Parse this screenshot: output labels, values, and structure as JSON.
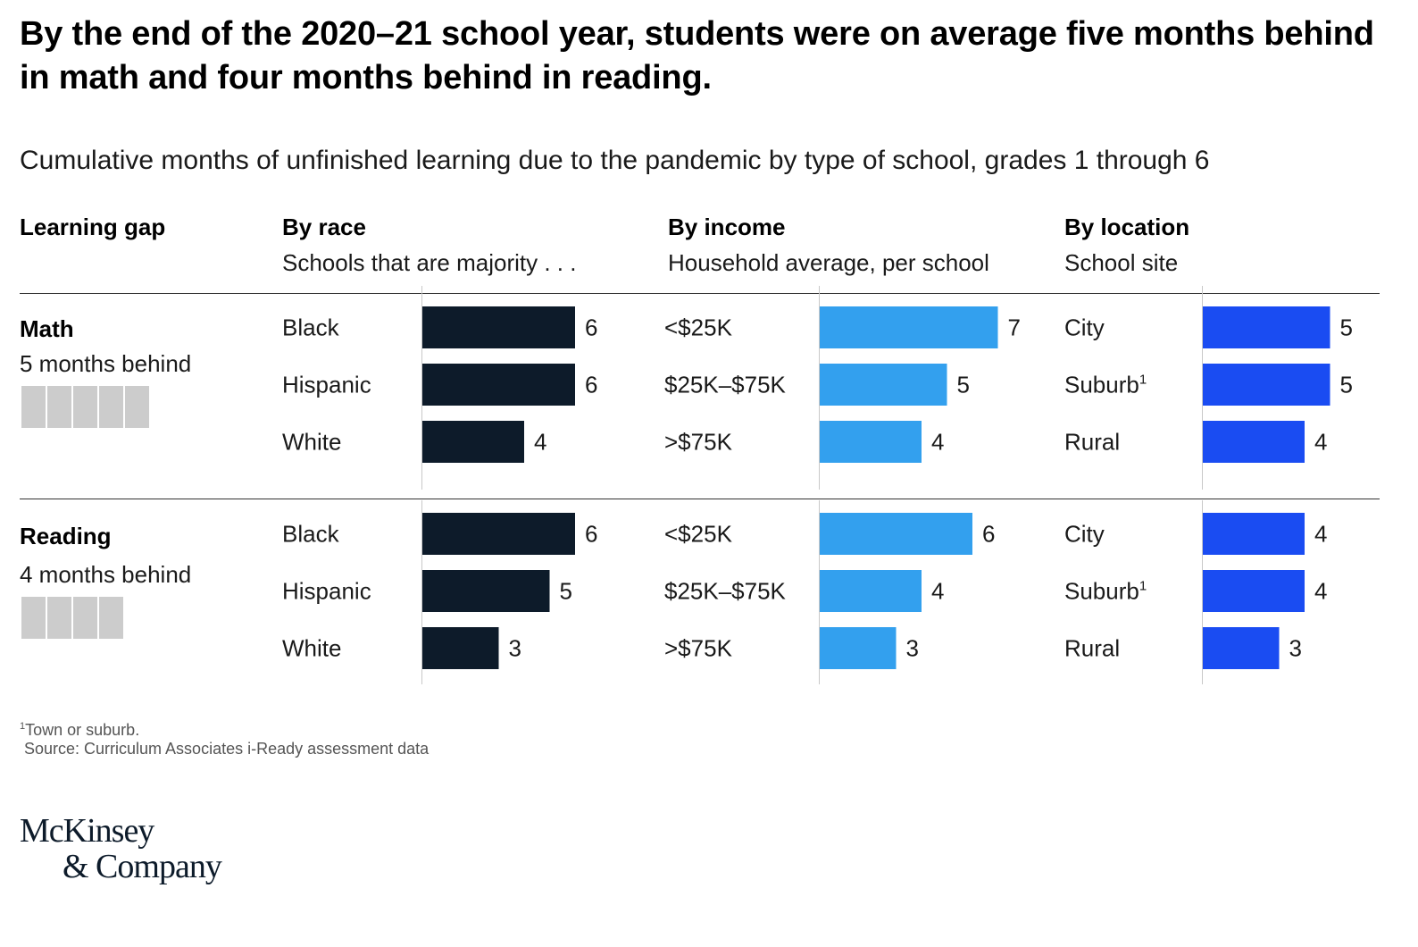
{
  "title": "By the end of the 2020–21 school year, students were on average five months behind in math and four months behind in reading.",
  "subtitle": "Cumulative months of unfinished learning due to the pandemic by type of school, grades 1 through 6",
  "headers": {
    "gap": {
      "label": "Learning gap"
    },
    "race": {
      "label": "By race",
      "sub": "Schools that are majority . . ."
    },
    "income": {
      "label": "By income",
      "sub": "Household average, per school"
    },
    "location": {
      "label": "By location",
      "sub": "School site"
    }
  },
  "sections": [
    {
      "name": "Math",
      "gap_label": "5 months behind",
      "gap_months": 5
    },
    {
      "name": "Reading",
      "gap_label": "4 months behind",
      "gap_months": 4
    }
  ],
  "colors": {
    "race": "#0d1b2a",
    "income": "#33a0ee",
    "location": "#1a4cf2",
    "gap_block": "#cccccc"
  },
  "chart_data": {
    "type": "bar",
    "orientation": "horizontal",
    "units": "months of unfinished learning",
    "panels": [
      {
        "subject": "Math",
        "groups": [
          {
            "key": "race",
            "categories": [
              "Black",
              "Hispanic",
              "White"
            ],
            "values": [
              6,
              6,
              4
            ]
          },
          {
            "key": "income",
            "categories": [
              "<$25K",
              "$25K–$75K",
              ">$75K"
            ],
            "values": [
              7,
              5,
              4
            ]
          },
          {
            "key": "location",
            "categories": [
              "City",
              "Suburb",
              "Rural"
            ],
            "category_notes": [
              "",
              "1",
              ""
            ],
            "values": [
              5,
              5,
              4
            ]
          }
        ]
      },
      {
        "subject": "Reading",
        "groups": [
          {
            "key": "race",
            "categories": [
              "Black",
              "Hispanic",
              "White"
            ],
            "values": [
              6,
              5,
              3
            ]
          },
          {
            "key": "income",
            "categories": [
              "<$25K",
              "$25K–$75K",
              ">$75K"
            ],
            "values": [
              6,
              4,
              3
            ]
          },
          {
            "key": "location",
            "categories": [
              "City",
              "Suburb",
              "Rural"
            ],
            "category_notes": [
              "",
              "1",
              ""
            ],
            "values": [
              4,
              4,
              3
            ]
          }
        ]
      }
    ]
  },
  "footnotes": {
    "note_marker": "1",
    "note": "Town or suburb.",
    "source": "Source: Curriculum Associates i-Ready assessment data"
  },
  "logo": {
    "line1": "McKinsey",
    "line2": "& Company"
  }
}
